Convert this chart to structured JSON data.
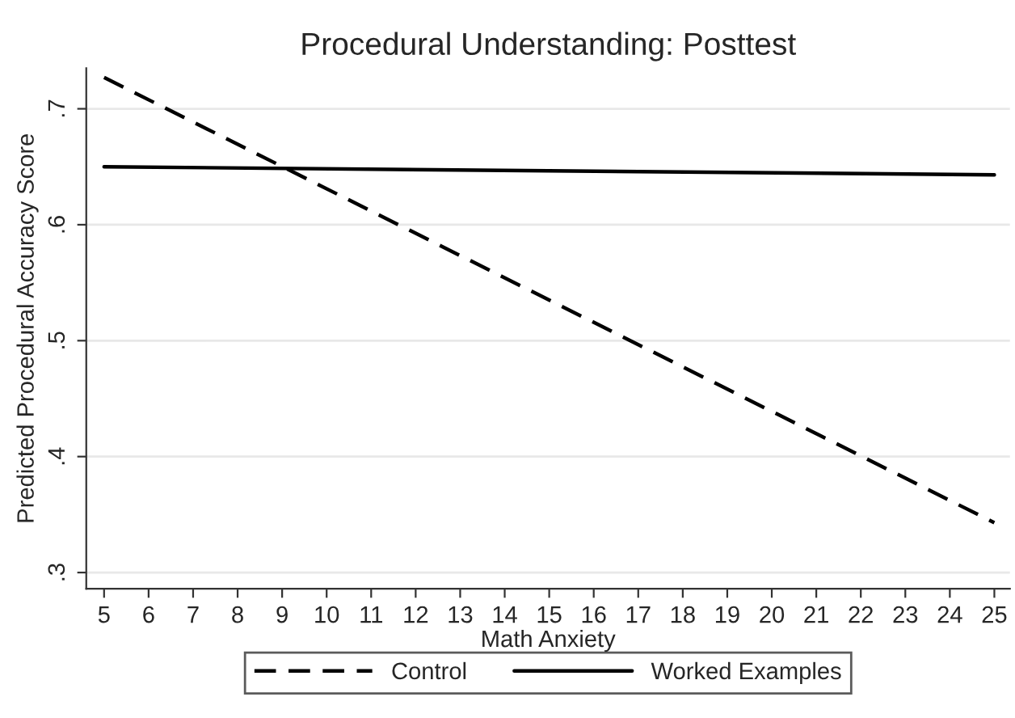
{
  "chart_data": {
    "type": "line",
    "title": "Procedural Understanding: Posttest",
    "xlabel": "Math Anxiety",
    "ylabel": "Predicted Procedural Accuracy Score",
    "x": [
      5,
      25
    ],
    "series": [
      {
        "name": "Control",
        "color": "#000000",
        "line_style": "dashed",
        "values": [
          0.727,
          0.343
        ]
      },
      {
        "name": "Worked Examples",
        "color": "#000000",
        "line_style": "solid",
        "values": [
          0.65,
          0.643
        ]
      }
    ],
    "xlim": [
      4.6,
      25.35
    ],
    "xticks": [
      5,
      6,
      7,
      8,
      9,
      10,
      11,
      12,
      13,
      14,
      15,
      16,
      17,
      18,
      19,
      20,
      21,
      22,
      23,
      24,
      25
    ],
    "ylim": [
      0.286,
      0.735
    ],
    "yticks": [
      {
        "value": 0.3,
        "label": ".3"
      },
      {
        "value": 0.4,
        "label": ".4"
      },
      {
        "value": 0.5,
        "label": ".5"
      },
      {
        "value": 0.6,
        "label": ".6"
      },
      {
        "value": 0.7,
        "label": ".7"
      }
    ],
    "grid": "y",
    "legend": "bottom",
    "marker": "none"
  }
}
